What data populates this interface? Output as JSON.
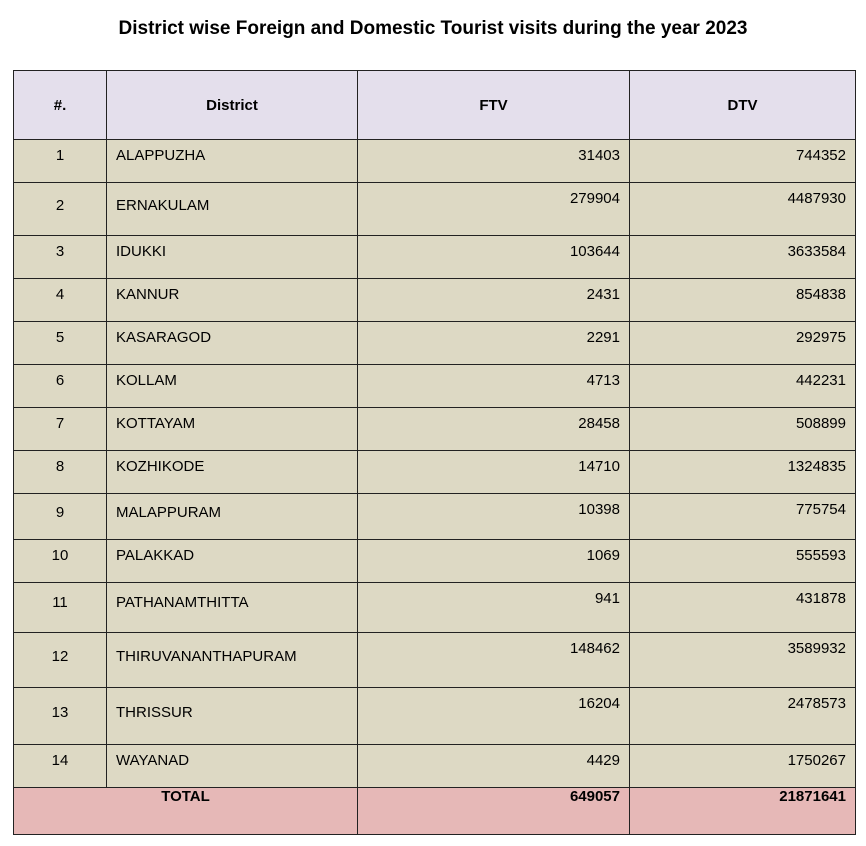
{
  "title": "District wise Foreign and Domestic Tourist visits during the year 2023",
  "headers": {
    "num": "#.",
    "district": "District",
    "ftv": "FTV",
    "dtv": "DTV"
  },
  "rows": [
    {
      "num": "1",
      "district": "ALAPPUZHA",
      "ftv": "31403",
      "dtv": "744352"
    },
    {
      "num": "2",
      "district": "ERNAKULAM",
      "ftv": "279904",
      "dtv": "4487930"
    },
    {
      "num": "3",
      "district": "IDUKKI",
      "ftv": "103644",
      "dtv": "3633584"
    },
    {
      "num": "4",
      "district": "KANNUR",
      "ftv": "2431",
      "dtv": "854838"
    },
    {
      "num": "5",
      "district": "KASARAGOD",
      "ftv": "2291",
      "dtv": "292975"
    },
    {
      "num": "6",
      "district": "KOLLAM",
      "ftv": "4713",
      "dtv": "442231"
    },
    {
      "num": "7",
      "district": "KOTTAYAM",
      "ftv": "28458",
      "dtv": "508899"
    },
    {
      "num": "8",
      "district": "KOZHIKODE",
      "ftv": "14710",
      "dtv": "1324835"
    },
    {
      "num": "9",
      "district": "MALAPPURAM",
      "ftv": "10398",
      "dtv": "775754"
    },
    {
      "num": "10",
      "district": "PALAKKAD",
      "ftv": "1069",
      "dtv": "555593"
    },
    {
      "num": "11",
      "district": "PATHANAMTHITTA",
      "ftv": "941",
      "dtv": "431878"
    },
    {
      "num": "12",
      "district": "THIRUVANANTHAPURAM",
      "ftv": "148462",
      "dtv": "3589932"
    },
    {
      "num": "13",
      "district": "THRISSUR",
      "ftv": "16204",
      "dtv": "2478573"
    },
    {
      "num": "14",
      "district": "WAYANAD",
      "ftv": "4429",
      "dtv": "1750267"
    }
  ],
  "total": {
    "label": "TOTAL",
    "ftv": "649057",
    "dtv": "21871641"
  },
  "colors": {
    "header_bg": "#e4dfec",
    "row_bg": "#ddd9c4",
    "total_bg": "#e6b8b7"
  }
}
